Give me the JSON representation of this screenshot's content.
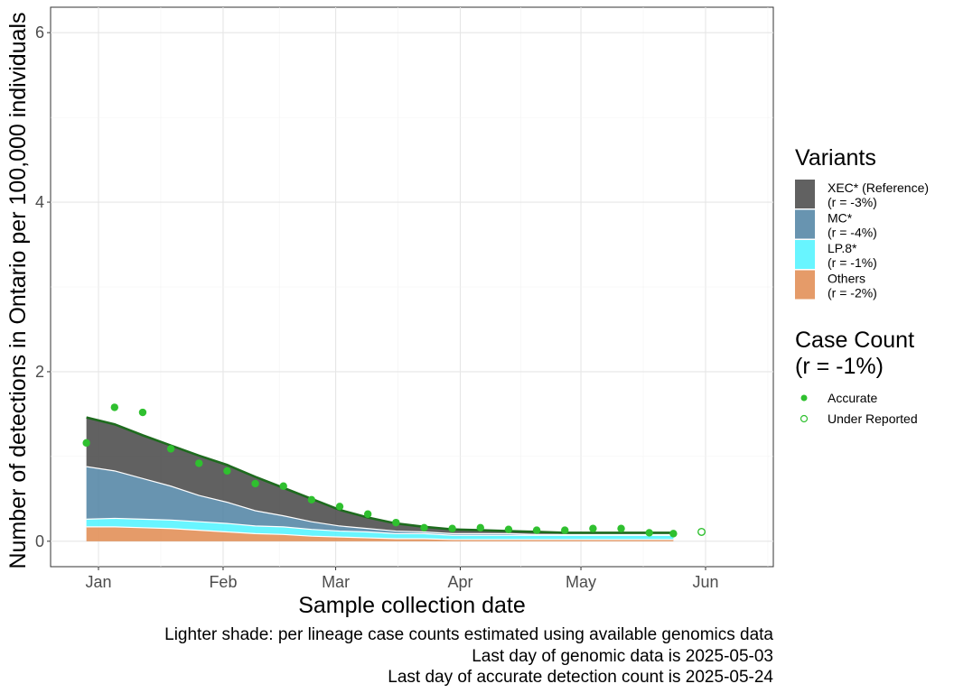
{
  "chart_data": {
    "type": "area",
    "ylabel": "Number of detections in Ontario per 100,000 individuals",
    "xlabel": "Sample collection date",
    "x_ticks": [
      "Jan",
      "Feb",
      "Mar",
      "Apr",
      "May",
      "Jun"
    ],
    "y_ticks": [
      "0",
      "2",
      "4",
      "6"
    ],
    "ylim": [
      -0.3,
      6.3
    ],
    "grid": true,
    "legend_position": "right",
    "x_dates": [
      "2024-12-29",
      "2025-01-05",
      "2025-01-12",
      "2025-01-19",
      "2025-01-26",
      "2025-02-02",
      "2025-02-09",
      "2025-02-16",
      "2025-02-23",
      "2025-03-02",
      "2025-03-09",
      "2025-03-16",
      "2025-03-23",
      "2025-03-30",
      "2025-04-06",
      "2025-04-13",
      "2025-04-20",
      "2025-04-27",
      "2025-05-04",
      "2025-05-11",
      "2025-05-18",
      "2025-05-24"
    ],
    "series": [
      {
        "name": "Others",
        "color": "#e08a4f",
        "values": [
          0.17,
          0.17,
          0.16,
          0.15,
          0.13,
          0.11,
          0.09,
          0.08,
          0.06,
          0.05,
          0.04,
          0.03,
          0.03,
          0.02,
          0.02,
          0.02,
          0.02,
          0.02,
          0.02,
          0.02,
          0.02,
          0.02
        ]
      },
      {
        "name": "LP.8*",
        "color": "#4ef3ff",
        "values": [
          0.09,
          0.1,
          0.1,
          0.1,
          0.1,
          0.1,
          0.09,
          0.09,
          0.08,
          0.07,
          0.07,
          0.06,
          0.06,
          0.05,
          0.05,
          0.05,
          0.05,
          0.05,
          0.05,
          0.05,
          0.05,
          0.05
        ]
      },
      {
        "name": "MC*",
        "color": "#4e81a2",
        "values": [
          0.62,
          0.56,
          0.48,
          0.4,
          0.31,
          0.25,
          0.18,
          0.13,
          0.09,
          0.06,
          0.04,
          0.03,
          0.02,
          0.02,
          0.02,
          0.02,
          0.01,
          0.01,
          0.01,
          0.01,
          0.01,
          0.01
        ]
      },
      {
        "name": "XEC* (Reference)",
        "color": "#454545",
        "values": [
          0.58,
          0.55,
          0.51,
          0.48,
          0.47,
          0.44,
          0.4,
          0.33,
          0.27,
          0.19,
          0.13,
          0.09,
          0.06,
          0.05,
          0.04,
          0.03,
          0.03,
          0.02,
          0.02,
          0.02,
          0.02,
          0.02
        ]
      }
    ],
    "total_line": {
      "color": "#1e6b1e"
    },
    "points_accurate": {
      "name": "Accurate",
      "color": "#2fc02f",
      "x": [
        "2024-12-29",
        "2025-01-05",
        "2025-01-12",
        "2025-01-19",
        "2025-01-26",
        "2025-02-02",
        "2025-02-09",
        "2025-02-16",
        "2025-02-23",
        "2025-03-02",
        "2025-03-09",
        "2025-03-16",
        "2025-03-23",
        "2025-03-30",
        "2025-04-06",
        "2025-04-13",
        "2025-04-20",
        "2025-04-27",
        "2025-05-04",
        "2025-05-11",
        "2025-05-18",
        "2025-05-24"
      ],
      "y": [
        1.16,
        1.58,
        1.52,
        1.09,
        0.92,
        0.83,
        0.68,
        0.65,
        0.49,
        0.41,
        0.32,
        0.22,
        0.16,
        0.15,
        0.16,
        0.14,
        0.13,
        0.13,
        0.15,
        0.15,
        0.1,
        0.09
      ]
    },
    "points_under_reported": {
      "name": "Under Reported",
      "color": "#2fc02f",
      "x": [
        "2025-05-31"
      ],
      "y": [
        0.11
      ]
    },
    "legend": {
      "variants_title": "Variants",
      "variants": [
        {
          "name": "XEC* (Reference)",
          "r": "(r = -3%)",
          "color": "#454545"
        },
        {
          "name": "MC*",
          "r": "(r = -4%)",
          "color": "#4e81a2"
        },
        {
          "name": "LP.8*",
          "r": "(r = -1%)",
          "color": "#4ef3ff"
        },
        {
          "name": "Others",
          "r": "(r = -2%)",
          "color": "#e08a4f"
        }
      ],
      "case_title_1": "Case Count",
      "case_title_2": "(r = -1%)",
      "accurate_label": "Accurate",
      "under_label": "Under Reported"
    },
    "caption": [
      "Lighter shade: per lineage case counts estimated using available genomics data",
      "Last day of genomic data is 2025-05-03",
      "Last day of accurate detection count is 2025-05-24"
    ]
  }
}
